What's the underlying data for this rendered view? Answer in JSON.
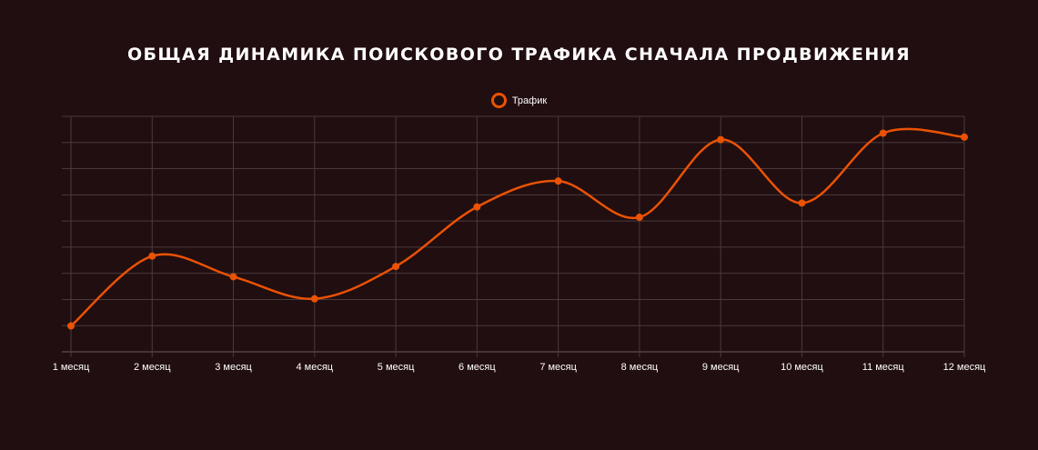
{
  "chart_data": {
    "type": "line",
    "title": "ОБЩАЯ ДИНАМИКА ПОИСКОВОГО ТРАФИКА СНАЧАЛА ПРОДВИЖЕНИЯ",
    "categories": [
      "1 месяц",
      "2 месяц",
      "3 месяц",
      "4 месяц",
      "5 месяц",
      "6 месяц",
      "7 месяц",
      "8 месяц",
      "9 месяц",
      "10 месяц",
      "11 месяц",
      "12 месяц"
    ],
    "series": [
      {
        "name": "Трафик",
        "values": [
          0.8,
          3.5,
          2.7,
          1.85,
          3.1,
          5.4,
          6.4,
          5.0,
          8.0,
          5.55,
          8.25,
          8.1
        ],
        "color": "#ea5204"
      }
    ],
    "ylim": [
      -0.2,
      8.9
    ],
    "grid": true,
    "legend_position": "top-center",
    "y_axis_labels_shown": false
  }
}
